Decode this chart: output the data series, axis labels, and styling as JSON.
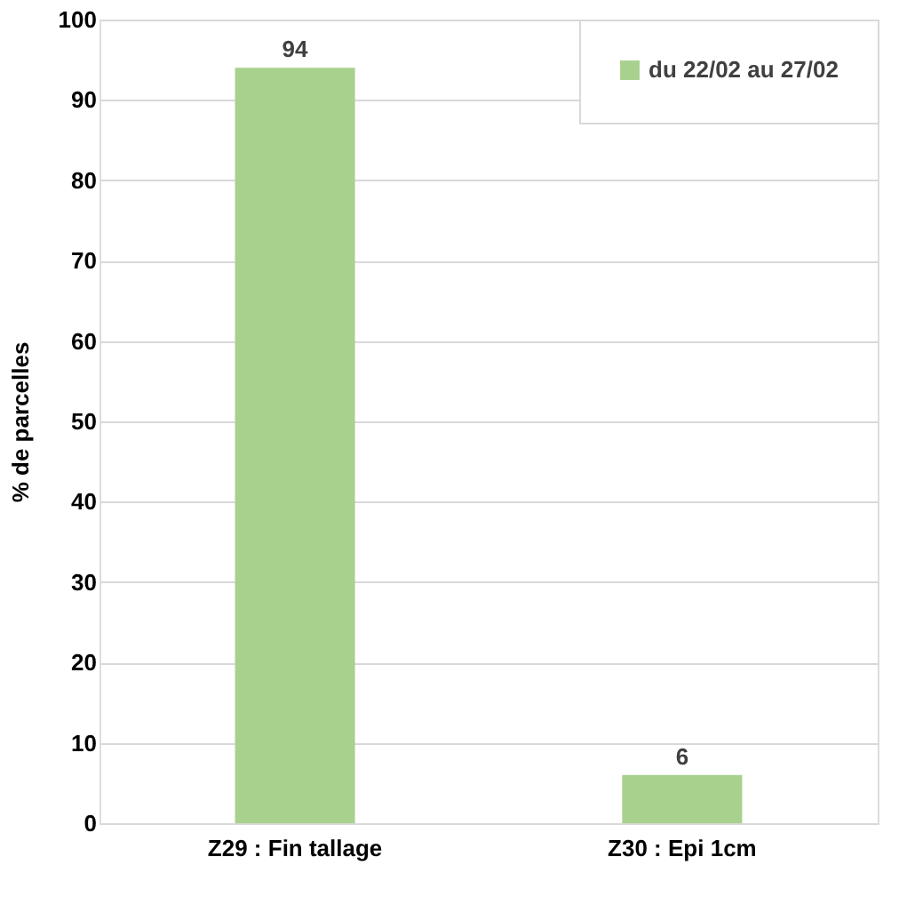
{
  "chart_data": {
    "type": "bar",
    "categories": [
      "Z29 : Fin tallage",
      "Z30 : Epi 1cm"
    ],
    "series": [
      {
        "name": "du 22/02 au 27/02",
        "color": "#a9d18e",
        "values": [
          94,
          6
        ]
      }
    ],
    "ylabel": "% de parcelles",
    "ylim": [
      0,
      100
    ],
    "yticks": [
      0,
      10,
      20,
      30,
      40,
      50,
      60,
      70,
      80,
      90,
      100
    ],
    "grid": "y",
    "legend": "top right",
    "data_labels": true
  }
}
